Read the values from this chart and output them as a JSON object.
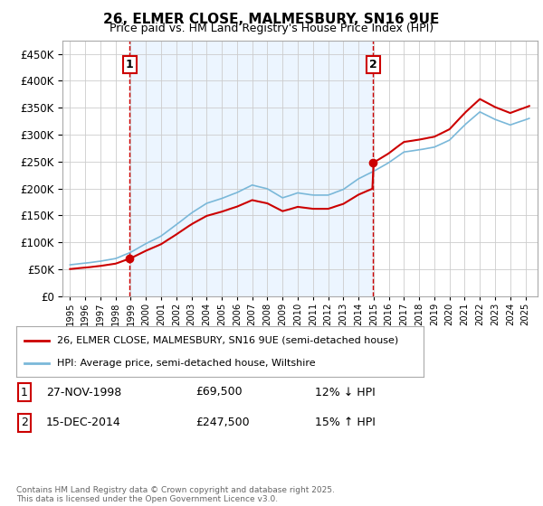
{
  "title_line1": "26, ELMER CLOSE, MALMESBURY, SN16 9UE",
  "title_line2": "Price paid vs. HM Land Registry's House Price Index (HPI)",
  "legend_label1": "26, ELMER CLOSE, MALMESBURY, SN16 9UE (semi-detached house)",
  "legend_label2": "HPI: Average price, semi-detached house, Wiltshire",
  "purchase1_label": "1",
  "purchase1_date": "27-NOV-1998",
  "purchase1_price": "£69,500",
  "purchase1_hpi": "12% ↓ HPI",
  "purchase2_label": "2",
  "purchase2_date": "15-DEC-2014",
  "purchase2_price": "£247,500",
  "purchase2_hpi": "15% ↑ HPI",
  "purchase1_year": 1998.92,
  "purchase1_value": 69500,
  "purchase2_year": 2014.96,
  "purchase2_value": 247500,
  "hpi_color": "#7ab8d9",
  "price_color": "#cc0000",
  "annotation_color": "#cc0000",
  "grid_color": "#cccccc",
  "bg_fill_color": "#ddeeff",
  "background_color": "#ffffff",
  "footer_text": "Contains HM Land Registry data © Crown copyright and database right 2025.\nThis data is licensed under the Open Government Licence v3.0.",
  "xlim_min": 1994.5,
  "xlim_max": 2025.8,
  "ylim_min": 0,
  "ylim_max": 475000
}
